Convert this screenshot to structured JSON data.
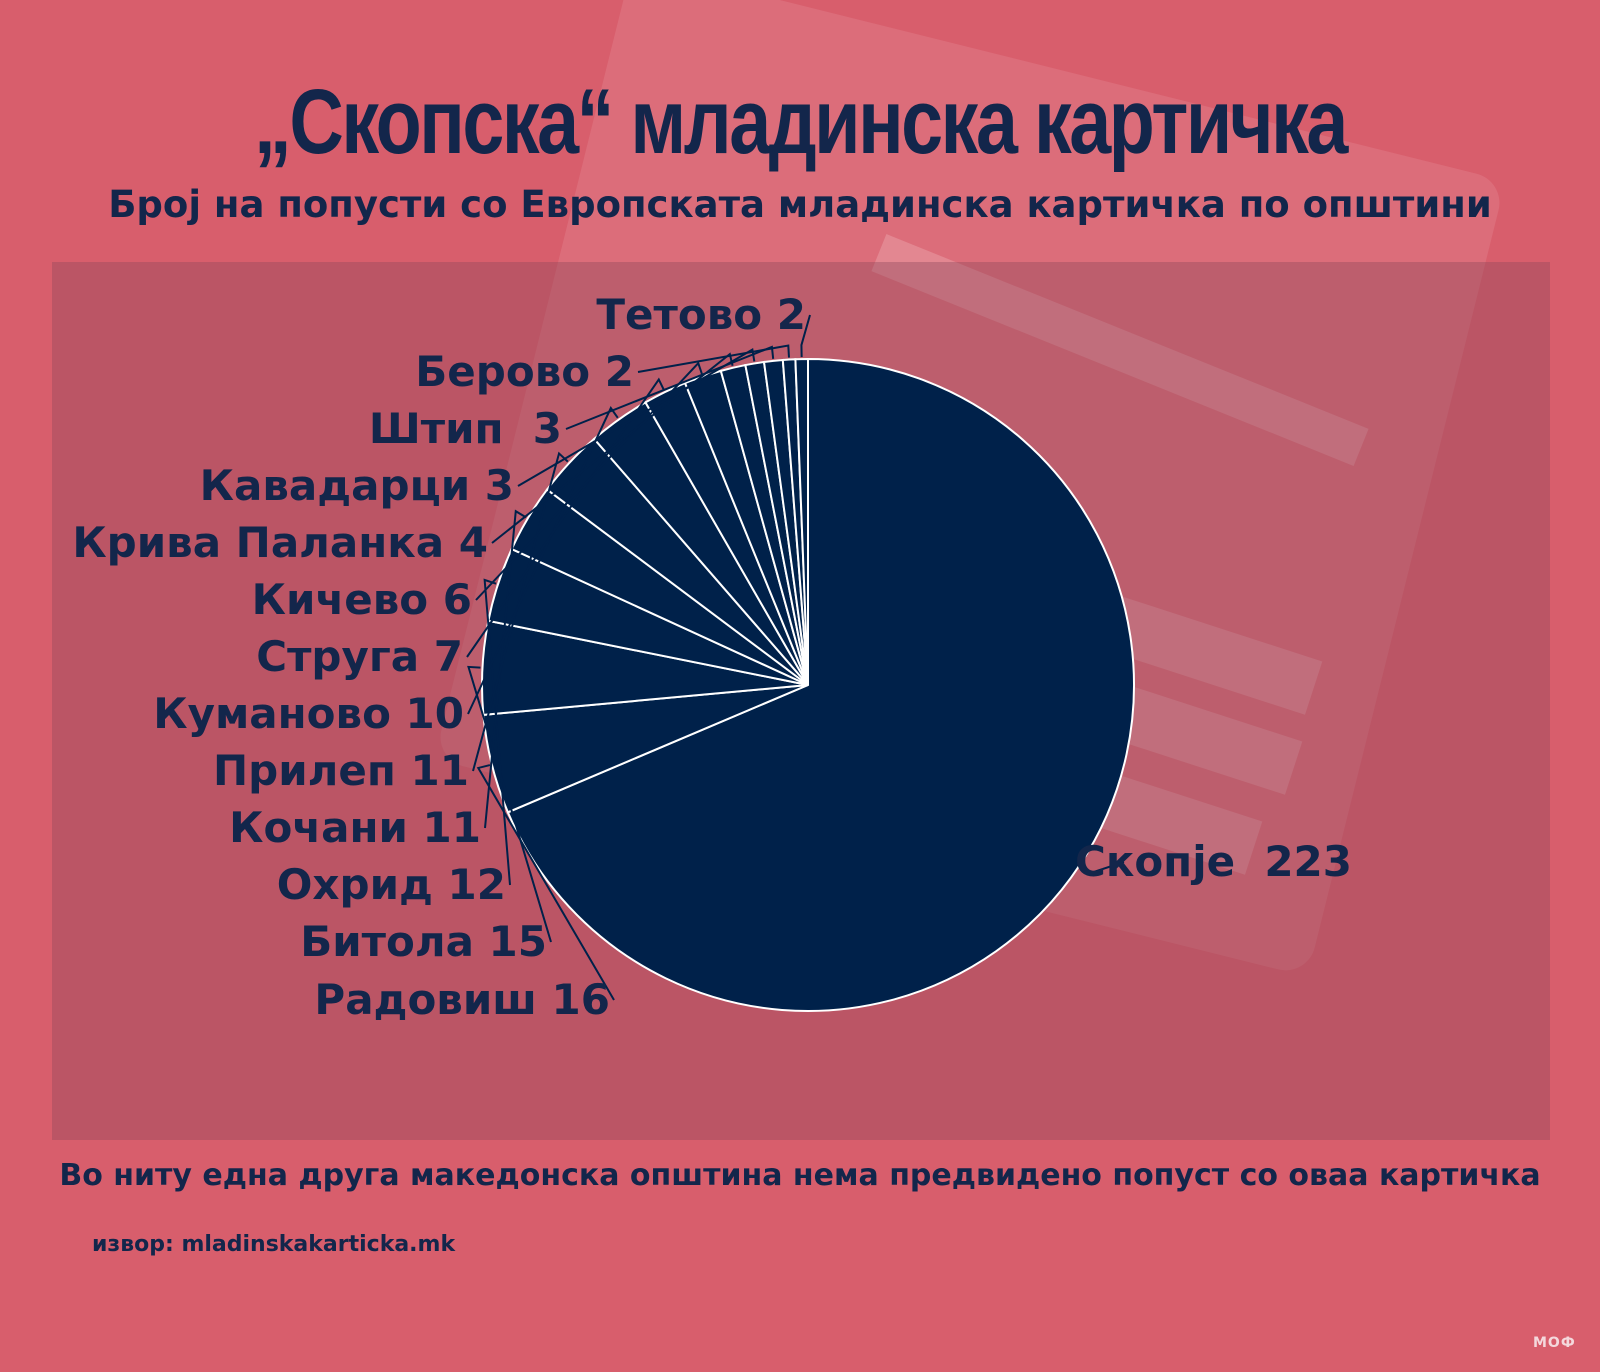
{
  "title": "„Скопска“ младинска картичка",
  "subtitle": "Број на попусти со Европската младинска картичка по општини",
  "footnote": "Во ниту една друга македонска општина нема предвидено попуст со оваа картичка",
  "source": "извор: mladinskakarticka.mk",
  "logo_text": "МОФ",
  "colors": {
    "background": "#d85e6c",
    "slice": "#00214a",
    "slice_border": "#ffffff",
    "text": "#13264b"
  },
  "chart_data": {
    "type": "pie",
    "title": "Број на попусти со Европската младинска картичка по општини",
    "labels": [
      "Скопје",
      "Радовиш",
      "Битола",
      "Охрид",
      "Кочани",
      "Прилеп",
      "Куманово",
      "Струга",
      "Кичево",
      "Крива Паланка",
      "Кавадарци",
      "Штип",
      "Берово",
      "Тетово"
    ],
    "values": [
      223,
      16,
      15,
      12,
      11,
      11,
      10,
      7,
      6,
      4,
      3,
      3,
      2,
      2
    ],
    "label_texts": [
      "Скопје  223",
      "Радовиш 16",
      "Битола 15",
      "Охрид 12",
      "Кочани 11",
      "Прилеп 11",
      "Куманово 10",
      "Струга 7",
      "Кичево 6",
      "Крива Паланка 4",
      "Кавадарци 3",
      "Штип  3",
      "Берово 2",
      "Тетово 2"
    ],
    "legend": "none",
    "data_labels": "outside with leader lines"
  }
}
